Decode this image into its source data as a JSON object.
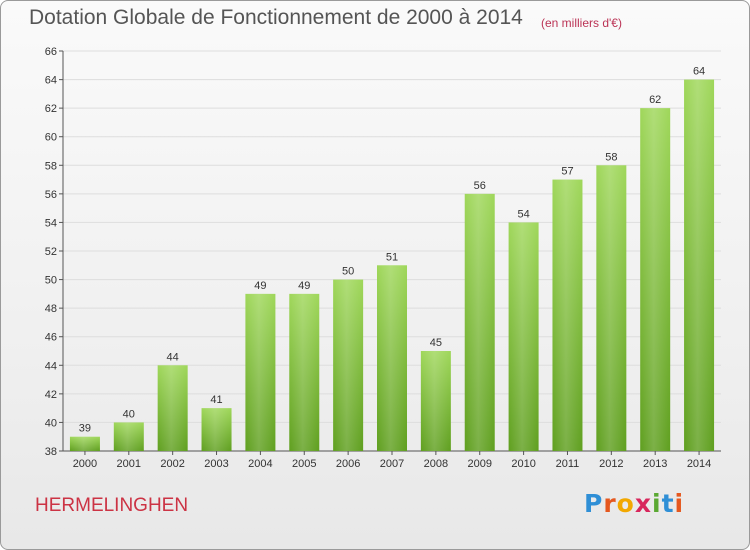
{
  "header": {
    "title": "Dotation Globale de Fonctionnement de 2000 à 2014",
    "subtitle": "(en milliers d'€)"
  },
  "footer": {
    "commune": "HERMELINGHEN",
    "logo": "Proxiti"
  },
  "logo_letters": [
    {
      "ch": "P",
      "color": "#2f8fd6"
    },
    {
      "ch": "r",
      "color": "#e5581f"
    },
    {
      "ch": "o",
      "color": "#f2a800"
    },
    {
      "ch": "x",
      "color": "#d8265c"
    },
    {
      "ch": "i",
      "color": "#5aa832"
    },
    {
      "ch": "t",
      "color": "#2f8fd6"
    },
    {
      "ch": "i",
      "color": "#e5581f"
    }
  ],
  "colors": {
    "bar_top": "#9fd75a",
    "bar_bottom": "#5f9f1f",
    "grid": "#dddddd"
  },
  "chart_data": {
    "type": "bar",
    "categories": [
      "2000",
      "2001",
      "2002",
      "2003",
      "2004",
      "2005",
      "2006",
      "2007",
      "2008",
      "2009",
      "2010",
      "2011",
      "2012",
      "2013",
      "2014"
    ],
    "values": [
      39,
      40,
      44,
      41,
      49,
      49,
      50,
      51,
      45,
      56,
      54,
      57,
      58,
      62,
      64
    ],
    "ylim": [
      38,
      66
    ],
    "ytick_step": 2,
    "yticks": [
      "38",
      "40",
      "42",
      "44",
      "46",
      "48",
      "50",
      "52",
      "54",
      "56",
      "58",
      "60",
      "62",
      "64",
      "66"
    ],
    "grid": true
  }
}
